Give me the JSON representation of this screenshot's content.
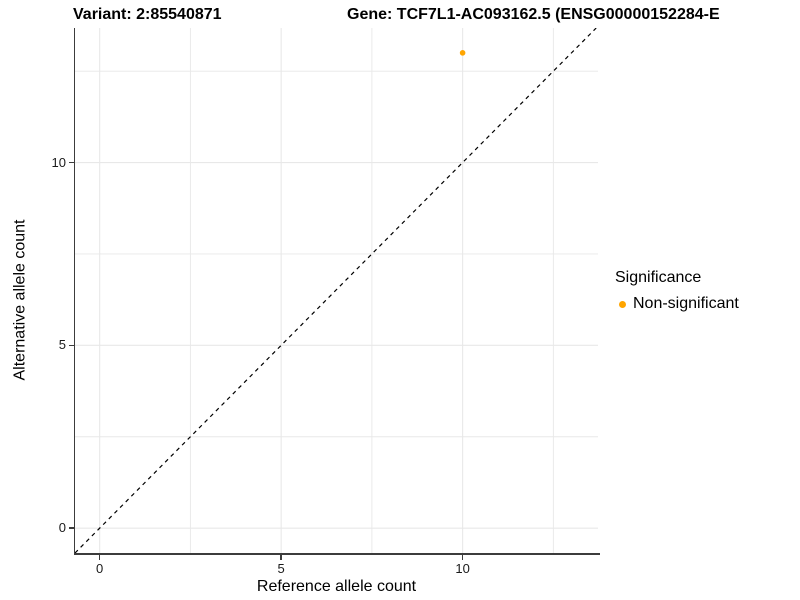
{
  "titles": {
    "variant": "Variant: 2:85540871",
    "gene": "Gene: TCF7L1-AC093162.5 (ENSG00000152284-E"
  },
  "legend": {
    "title": "Significance",
    "items": [
      {
        "label": "Non-significant",
        "color": "#FFA500"
      }
    ]
  },
  "chart_data": {
    "type": "scatter",
    "title": "Variant: 2:85540871 — Gene: TCF7L1-AC093162.5 (ENSG00000152284-E…)",
    "xlabel": "Reference allele count",
    "ylabel": "Alternative allele count",
    "xlim": [
      -0.68,
      13.73
    ],
    "ylim": [
      -0.68,
      13.68
    ],
    "x_ticks": [
      0,
      5,
      10
    ],
    "y_ticks": [
      0,
      5,
      10
    ],
    "x_minor_ticks": [
      2.5,
      7.5,
      12.5
    ],
    "y_minor_ticks": [
      2.5,
      7.5,
      12.5
    ],
    "grid": "major+minor",
    "legend_position": "right",
    "series": [
      {
        "name": "Non-significant",
        "color": "#FFA500",
        "points": [
          {
            "x": 10,
            "y": 13
          }
        ]
      }
    ],
    "reference_line": {
      "type": "identity",
      "slope": 1,
      "intercept": 0,
      "linestyle": "dashed",
      "color": "#000000"
    }
  },
  "style": {
    "grid_color": "#e8e8e8",
    "axis_color": "#3c3c3c",
    "tick_label_color": "#1a1a1a"
  }
}
